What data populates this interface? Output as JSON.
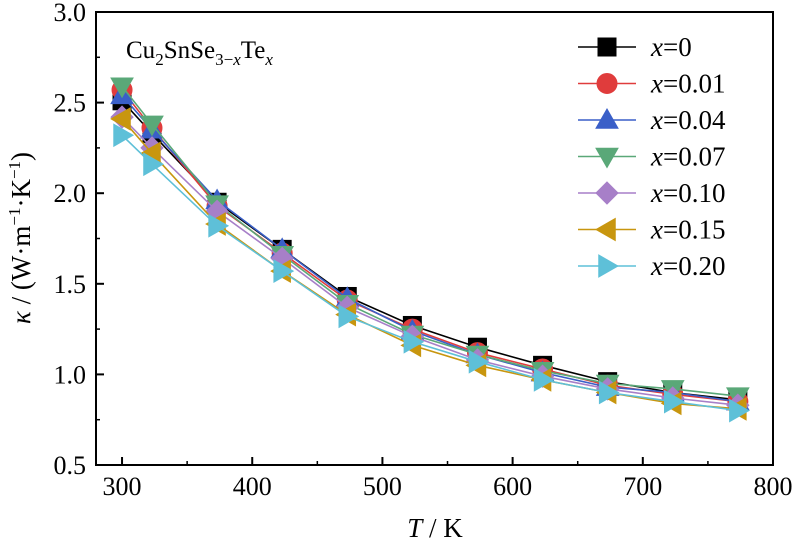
{
  "chart_data": {
    "type": "line",
    "annotation": {
      "base": "Cu",
      "s1": "2",
      "mid": "SnSe",
      "s2": "3−",
      "s2var": "x",
      "end": "Te",
      "s3": "x"
    },
    "xlabel": {
      "var": "T",
      "rest": " / K"
    },
    "ylabel": {
      "var": "κ",
      "rest": " / (W·m",
      "sup1": "−1",
      "mid": "·K",
      "sup2": "−1",
      "close": ")"
    },
    "xlim": [
      280,
      800
    ],
    "ylim": [
      0.5,
      3.0
    ],
    "xticks": [
      "300",
      "400",
      "500",
      "600",
      "700",
      "800"
    ],
    "xtick_values": [
      300,
      400,
      500,
      600,
      700,
      800
    ],
    "yticks": [
      "0.5",
      "1.0",
      "1.5",
      "2.0",
      "2.5",
      "3.0"
    ],
    "ytick_values": [
      0.5,
      1.0,
      1.5,
      2.0,
      2.5,
      3.0
    ],
    "legend_position": "top-right",
    "x": [
      300,
      323,
      373,
      423,
      473,
      523,
      573,
      623,
      673,
      723,
      773
    ],
    "series": [
      {
        "name_var": "x",
        "name_val": "=0",
        "marker": "square",
        "color": "#000000",
        "values": [
          2.51,
          2.33,
          1.95,
          1.69,
          1.43,
          1.27,
          1.15,
          1.05,
          0.96,
          0.9,
          0.86
        ]
      },
      {
        "name_var": "x",
        "name_val": "=0.01",
        "marker": "circle",
        "color": "#e03c3c",
        "values": [
          2.57,
          2.36,
          1.93,
          1.67,
          1.41,
          1.25,
          1.12,
          1.03,
          0.94,
          0.89,
          0.85
        ]
      },
      {
        "name_var": "x",
        "name_val": "=0.04",
        "marker": "triangle-up",
        "color": "#3a5fc8",
        "values": [
          2.54,
          2.35,
          1.96,
          1.69,
          1.42,
          1.24,
          1.11,
          1.01,
          0.93,
          0.9,
          0.85
        ]
      },
      {
        "name_var": "x",
        "name_val": "=0.07",
        "marker": "triangle-down",
        "color": "#5aa878",
        "values": [
          2.59,
          2.38,
          1.94,
          1.66,
          1.39,
          1.22,
          1.11,
          1.02,
          0.95,
          0.92,
          0.88
        ]
      },
      {
        "name_var": "x",
        "name_val": "=0.10",
        "marker": "diamond",
        "color": "#a77fc8",
        "values": [
          2.42,
          2.25,
          1.9,
          1.64,
          1.37,
          1.21,
          1.08,
          0.99,
          0.92,
          0.87,
          0.83
        ]
      },
      {
        "name_var": "x",
        "name_val": "=0.15",
        "marker": "triangle-left",
        "color": "#c8960f",
        "values": [
          2.41,
          2.22,
          1.83,
          1.57,
          1.33,
          1.16,
          1.05,
          0.97,
          0.9,
          0.84,
          0.81
        ]
      },
      {
        "name_var": "x",
        "name_val": "=0.20",
        "marker": "triangle-right",
        "color": "#5ec0d8",
        "values": [
          2.32,
          2.16,
          1.82,
          1.57,
          1.32,
          1.18,
          1.07,
          0.97,
          0.9,
          0.85,
          0.8
        ]
      }
    ]
  }
}
